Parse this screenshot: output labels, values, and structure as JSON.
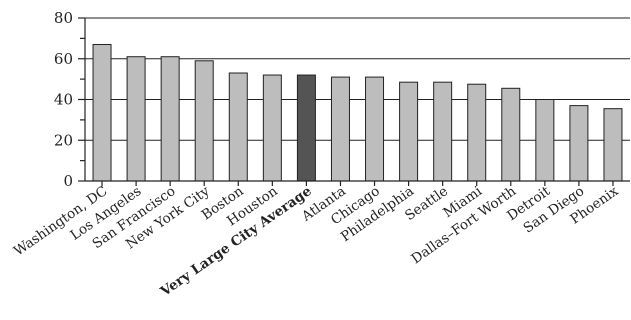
{
  "chart_data": {
    "type": "bar",
    "categories": [
      "Washington, DC",
      "Los Angeles",
      "San Francisco",
      "New York City",
      "Boston",
      "Houston",
      "Very Large City Average",
      "Atlanta",
      "Chicago",
      "Philadelphia",
      "Seattle",
      "Miami",
      "Dallas–Fort Worth",
      "Detroit",
      "San Diego",
      "Phoenix"
    ],
    "values": [
      67,
      61,
      61,
      59,
      53,
      52,
      52,
      51,
      51,
      48.5,
      48.5,
      47.5,
      45.5,
      40,
      37,
      35.5
    ],
    "highlight_index": 6,
    "ylim": [
      0,
      80
    ],
    "yticks": [
      0,
      20,
      40,
      60,
      80
    ],
    "grid": true,
    "title": "",
    "xlabel": "",
    "ylabel": "",
    "colors": {
      "bar": "#bdbdbd",
      "highlight_bar": "#545454",
      "axis": "#222222"
    }
  }
}
